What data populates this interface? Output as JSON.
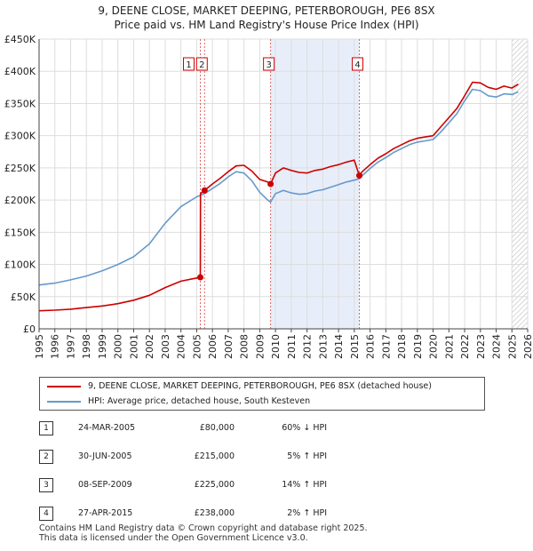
{
  "title": {
    "line1": "9, DEENE CLOSE, MARKET DEEPING, PETERBOROUGH, PE6 8SX",
    "line2": "Price paid vs. HM Land Registry's House Price Index (HPI)"
  },
  "chart_data": {
    "type": "line",
    "x_range": [
      1995,
      2026
    ],
    "y_range": [
      0,
      450000
    ],
    "y_ticks": [
      "£0",
      "£50K",
      "£100K",
      "£150K",
      "£200K",
      "£250K",
      "£300K",
      "£350K",
      "£400K",
      "£450K"
    ],
    "x_ticks": [
      "1995",
      "1996",
      "1997",
      "1998",
      "1999",
      "2000",
      "2001",
      "2002",
      "2003",
      "2004",
      "2005",
      "2006",
      "2007",
      "2008",
      "2009",
      "2010",
      "2011",
      "2012",
      "2013",
      "2014",
      "2015",
      "2016",
      "2017",
      "2018",
      "2019",
      "2020",
      "2021",
      "2022",
      "2023",
      "2024",
      "2025",
      "2026"
    ],
    "grid": true,
    "shaded_period": [
      2009.69,
      2015.32
    ],
    "hatched_after": 2025.0,
    "series": [
      {
        "name": "9, DEENE CLOSE, MARKET DEEPING, PETERBOROUGH, PE6 8SX (detached house)",
        "color": "#cc0000",
        "points": [
          [
            1995.0,
            28000
          ],
          [
            1996.0,
            29000
          ],
          [
            1997.0,
            30500
          ],
          [
            1998.0,
            33000
          ],
          [
            1999.0,
            35500
          ],
          [
            2000.0,
            39000
          ],
          [
            2001.0,
            44500
          ],
          [
            2002.0,
            52000
          ],
          [
            2003.0,
            64000
          ],
          [
            2004.0,
            74000
          ],
          [
            2005.0,
            79000
          ],
          [
            2005.23,
            80000
          ],
          [
            2005.24,
            210000
          ],
          [
            2005.5,
            215000
          ],
          [
            2006.0,
            225000
          ],
          [
            2006.5,
            234000
          ],
          [
            2007.0,
            244000
          ],
          [
            2007.5,
            253000
          ],
          [
            2008.0,
            254000
          ],
          [
            2008.5,
            245000
          ],
          [
            2009.0,
            232000
          ],
          [
            2009.5,
            228000
          ],
          [
            2009.69,
            225000
          ],
          [
            2010.0,
            242000
          ],
          [
            2010.5,
            250000
          ],
          [
            2011.0,
            246000
          ],
          [
            2011.5,
            243000
          ],
          [
            2012.0,
            242000
          ],
          [
            2012.5,
            246000
          ],
          [
            2013.0,
            248000
          ],
          [
            2013.5,
            252000
          ],
          [
            2014.0,
            255000
          ],
          [
            2014.5,
            259000
          ],
          [
            2015.0,
            262000
          ],
          [
            2015.32,
            238000
          ],
          [
            2015.5,
            244000
          ],
          [
            2016.0,
            255000
          ],
          [
            2016.5,
            265000
          ],
          [
            2017.0,
            272000
          ],
          [
            2017.5,
            280000
          ],
          [
            2018.0,
            286000
          ],
          [
            2018.5,
            292000
          ],
          [
            2019.0,
            296000
          ],
          [
            2019.5,
            298000
          ],
          [
            2020.0,
            300000
          ],
          [
            2020.5,
            314000
          ],
          [
            2021.0,
            328000
          ],
          [
            2021.5,
            342000
          ],
          [
            2022.0,
            362000
          ],
          [
            2022.5,
            383000
          ],
          [
            2023.0,
            382000
          ],
          [
            2023.5,
            375000
          ],
          [
            2024.0,
            372000
          ],
          [
            2024.5,
            377000
          ],
          [
            2025.0,
            374000
          ],
          [
            2025.4,
            380000
          ]
        ]
      },
      {
        "name": "HPI: Average price, detached house, South Kesteven",
        "color": "#6699cc",
        "points": [
          [
            1995.0,
            68000
          ],
          [
            1996.0,
            71000
          ],
          [
            1997.0,
            76000
          ],
          [
            1998.0,
            82000
          ],
          [
            1999.0,
            90000
          ],
          [
            2000.0,
            100000
          ],
          [
            2001.0,
            112000
          ],
          [
            2002.0,
            132000
          ],
          [
            2003.0,
            164000
          ],
          [
            2004.0,
            190000
          ],
          [
            2005.0,
            205000
          ],
          [
            2005.5,
            210000
          ],
          [
            2006.0,
            218000
          ],
          [
            2006.5,
            226000
          ],
          [
            2007.0,
            236000
          ],
          [
            2007.5,
            244000
          ],
          [
            2008.0,
            242000
          ],
          [
            2008.5,
            230000
          ],
          [
            2009.0,
            212000
          ],
          [
            2009.5,
            200000
          ],
          [
            2009.69,
            197000
          ],
          [
            2010.0,
            210000
          ],
          [
            2010.5,
            215000
          ],
          [
            2011.0,
            211000
          ],
          [
            2011.5,
            209000
          ],
          [
            2012.0,
            210000
          ],
          [
            2012.5,
            214000
          ],
          [
            2013.0,
            216000
          ],
          [
            2013.5,
            220000
          ],
          [
            2014.0,
            224000
          ],
          [
            2014.5,
            228000
          ],
          [
            2015.0,
            231000
          ],
          [
            2015.32,
            233000
          ],
          [
            2015.5,
            238000
          ],
          [
            2016.0,
            249000
          ],
          [
            2016.5,
            259000
          ],
          [
            2017.0,
            266000
          ],
          [
            2017.5,
            274000
          ],
          [
            2018.0,
            280000
          ],
          [
            2018.5,
            286000
          ],
          [
            2019.0,
            290000
          ],
          [
            2019.5,
            292000
          ],
          [
            2020.0,
            294000
          ],
          [
            2020.5,
            306000
          ],
          [
            2021.0,
            320000
          ],
          [
            2021.5,
            334000
          ],
          [
            2022.0,
            354000
          ],
          [
            2022.5,
            372000
          ],
          [
            2023.0,
            370000
          ],
          [
            2023.5,
            362000
          ],
          [
            2024.0,
            360000
          ],
          [
            2024.5,
            365000
          ],
          [
            2025.0,
            364000
          ],
          [
            2025.4,
            368000
          ]
        ]
      }
    ],
    "markers": [
      {
        "label": "1",
        "x": 2005.23,
        "y": 80000
      },
      {
        "label": "2",
        "x": 2005.5,
        "y": 215000
      },
      {
        "label": "3",
        "x": 2009.69,
        "y": 225000
      },
      {
        "label": "4",
        "x": 2015.32,
        "y": 238000
      }
    ]
  },
  "legend": {
    "items": [
      {
        "label": "9, DEENE CLOSE, MARKET DEEPING, PETERBOROUGH, PE6 8SX (detached house)",
        "color": "#cc0000"
      },
      {
        "label": "HPI: Average price, detached house, South Kesteven",
        "color": "#6699cc"
      }
    ]
  },
  "transactions": [
    {
      "num": "1",
      "date": "24-MAR-2005",
      "price": "£80,000",
      "diff": "60% ↓ HPI"
    },
    {
      "num": "2",
      "date": "30-JUN-2005",
      "price": "£215,000",
      "diff": "5% ↑ HPI"
    },
    {
      "num": "3",
      "date": "08-SEP-2009",
      "price": "£225,000",
      "diff": "14% ↑ HPI"
    },
    {
      "num": "4",
      "date": "27-APR-2015",
      "price": "£238,000",
      "diff": "2% ↑ HPI"
    }
  ],
  "footer": {
    "line1": "Contains HM Land Registry data © Crown copyright and database right 2025.",
    "line2": "This data is licensed under the Open Government Licence v3.0."
  }
}
